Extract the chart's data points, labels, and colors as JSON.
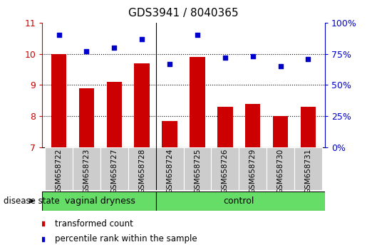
{
  "title": "GDS3941 / 8040365",
  "samples": [
    "GSM658722",
    "GSM658723",
    "GSM658727",
    "GSM658728",
    "GSM658724",
    "GSM658725",
    "GSM658726",
    "GSM658729",
    "GSM658730",
    "GSM658731"
  ],
  "red_bars": [
    10.0,
    8.9,
    9.1,
    9.7,
    7.85,
    9.9,
    8.3,
    8.4,
    8.0,
    8.3
  ],
  "blue_dots": [
    90,
    77,
    80,
    87,
    67,
    90,
    72,
    73,
    65,
    71
  ],
  "ylim_left": [
    7,
    11
  ],
  "ylim_right": [
    0,
    100
  ],
  "yticks_left": [
    7,
    8,
    9,
    10,
    11
  ],
  "yticks_right": [
    0,
    25,
    50,
    75,
    100
  ],
  "ytick_labels_right": [
    "0%",
    "25%",
    "50%",
    "75%",
    "100%"
  ],
  "bar_color": "#cc0000",
  "dot_color": "#0000cc",
  "bar_width": 0.55,
  "legend_label_red": "transformed count",
  "legend_label_blue": "percentile rank within the sample",
  "disease_state_label": "disease state",
  "group1_label": "vaginal dryness",
  "group2_label": "control",
  "tick_color_left": "#cc0000",
  "tick_color_right": "#0000cc",
  "green_color": "#66dd66",
  "gray_color": "#cccccc",
  "title_fontsize": 11,
  "axis_fontsize": 9,
  "sample_fontsize": 7.5,
  "legend_fontsize": 8.5,
  "disease_fontsize": 9
}
